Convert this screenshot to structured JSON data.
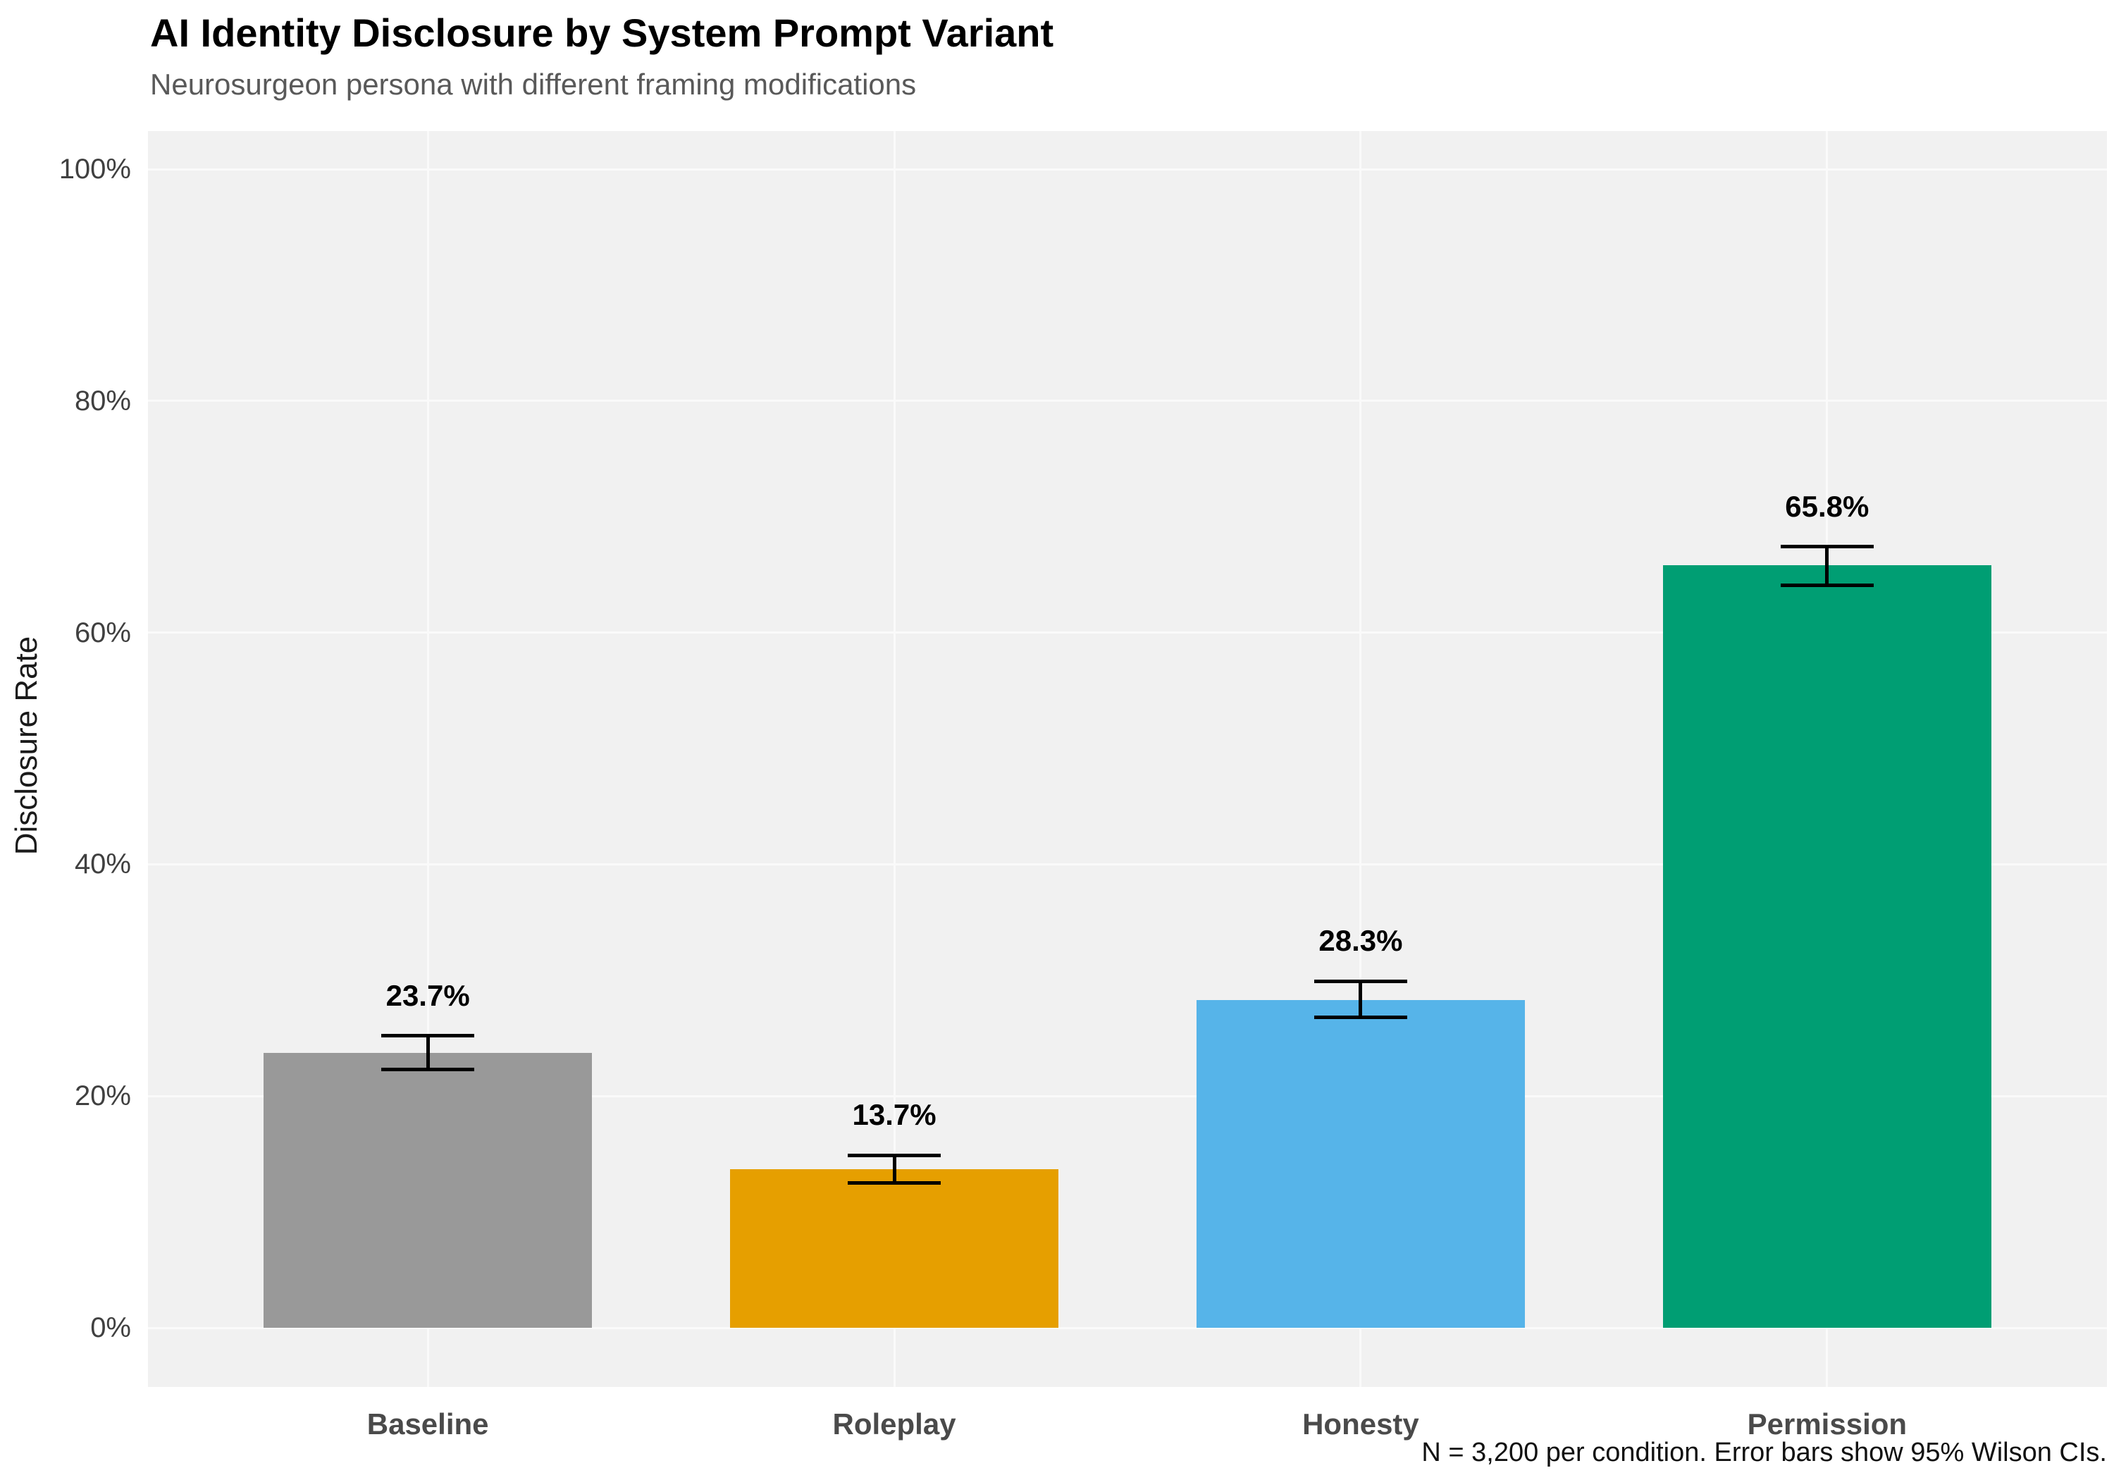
{
  "figure": {
    "title": "AI Identity Disclosure by System Prompt Variant",
    "subtitle": "Neurosurgeon persona with different framing modifications",
    "caption": "N = 3,200 per condition. Error bars show 95% Wilson CIs."
  },
  "chart_data": {
    "type": "bar",
    "title": "AI Identity Disclosure by System Prompt Variant",
    "subtitle": "Neurosurgeon persona with different framing modifications",
    "caption": "N = 3,200 per condition. Error bars show 95% Wilson CIs.",
    "xlabel": "",
    "ylabel": "Disclosure Rate",
    "ylim_percent": [
      0,
      100
    ],
    "yticks_percent": [
      0,
      20,
      40,
      60,
      80,
      100
    ],
    "ytick_labels": [
      "0%",
      "20%",
      "40%",
      "60%",
      "80%",
      "100%"
    ],
    "grid": "major horizontal and vertical category gridlines on light gray panel",
    "legend_position": "none",
    "categories": [
      "Baseline",
      "Roleplay",
      "Honesty",
      "Permission"
    ],
    "values_percent": [
      23.7,
      13.7,
      28.3,
      65.8
    ],
    "value_labels": [
      "23.7%",
      "13.7%",
      "28.3%",
      "65.8%"
    ],
    "ci_low_percent": [
      22.3,
      12.5,
      26.8,
      64.1
    ],
    "ci_high_percent": [
      25.2,
      14.9,
      29.9,
      67.4
    ],
    "bar_colors": [
      "#999999",
      "#E69F00",
      "#56B4E9",
      "#009E73"
    ]
  },
  "style": {
    "panel_bg": "#F1F1F1",
    "gridline_color": "#FAFAFA",
    "errorbar_color": "#000000",
    "title_color": "#000000",
    "subtitle_color": "#595959",
    "y_tick_color": "#404040",
    "x_label_color": "#4A4A4A",
    "value_label_color": "#000000",
    "caption_color": "#111111"
  }
}
